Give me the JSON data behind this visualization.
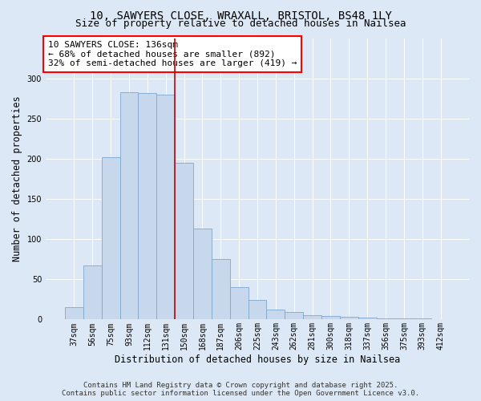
{
  "title_line1": "10, SAWYERS CLOSE, WRAXALL, BRISTOL, BS48 1LY",
  "title_line2": "Size of property relative to detached houses in Nailsea",
  "xlabel": "Distribution of detached houses by size in Nailsea",
  "ylabel": "Number of detached properties",
  "categories": [
    "37sqm",
    "56sqm",
    "75sqm",
    "93sqm",
    "112sqm",
    "131sqm",
    "150sqm",
    "168sqm",
    "187sqm",
    "206sqm",
    "225sqm",
    "243sqm",
    "262sqm",
    "281sqm",
    "300sqm",
    "318sqm",
    "337sqm",
    "356sqm",
    "375sqm",
    "393sqm",
    "412sqm"
  ],
  "values": [
    15,
    67,
    67,
    202,
    283,
    282,
    280,
    195,
    113,
    113,
    75,
    75,
    40,
    40,
    24,
    24,
    12,
    12,
    9,
    9,
    5,
    5,
    4,
    4,
    3,
    3,
    2,
    2,
    1,
    1,
    1,
    1,
    1,
    1,
    0,
    0,
    0,
    0,
    0,
    0,
    0,
    0
  ],
  "bar_values": [
    15,
    67,
    202,
    283,
    282,
    280,
    195,
    113,
    75,
    40,
    24,
    12,
    9,
    5,
    4,
    3,
    2,
    1,
    1,
    1,
    0
  ],
  "bar_color": "#c8d8ec",
  "bar_edge_color": "#7fa8d0",
  "vline_index": 5,
  "vline_color": "#cc0000",
  "background_color": "#dce8f5",
  "plot_bg_color": "#dce8f5",
  "annotation_box_text": "10 SAWYERS CLOSE: 136sqm\n← 68% of detached houses are smaller (892)\n32% of semi-detached houses are larger (419) →",
  "ylim": [
    0,
    350
  ],
  "yticks": [
    0,
    50,
    100,
    150,
    200,
    250,
    300
  ],
  "footer_line1": "Contains HM Land Registry data © Crown copyright and database right 2025.",
  "footer_line2": "Contains public sector information licensed under the Open Government Licence v3.0.",
  "title_fontsize": 10,
  "subtitle_fontsize": 9,
  "axis_label_fontsize": 8.5,
  "tick_fontsize": 7,
  "annotation_fontsize": 8,
  "footer_fontsize": 6.5
}
